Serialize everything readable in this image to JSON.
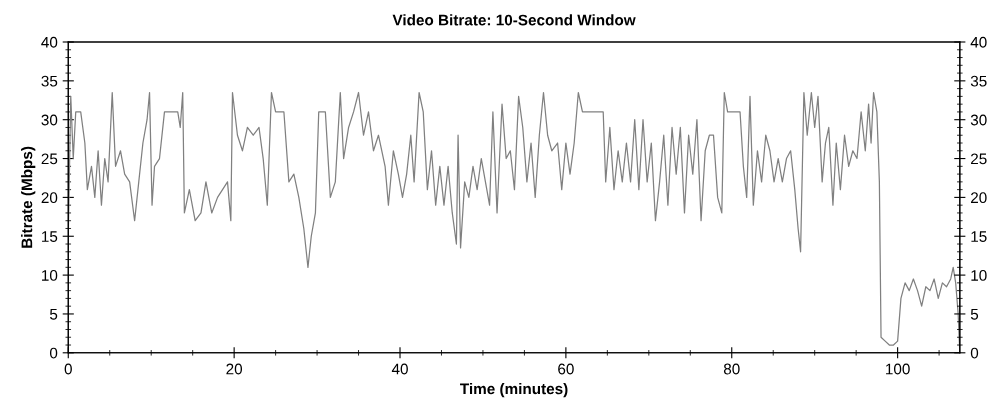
{
  "chart_data": {
    "type": "line",
    "title": "Video Bitrate: 10-Second Window",
    "xlabel": "Time (minutes)",
    "ylabel": "Bitrate (Mbps)",
    "xlim": [
      0,
      107.5
    ],
    "xticks": [
      0,
      20,
      40,
      60,
      80,
      100
    ],
    "ylim": [
      0,
      40
    ],
    "yticks": [
      0,
      5,
      10,
      15,
      20,
      25,
      30,
      35,
      40
    ],
    "y2lim": [
      0,
      40
    ],
    "y2ticks": [
      0,
      5,
      10,
      15,
      20,
      25,
      30,
      35,
      40
    ],
    "grid": false,
    "line_style": "solid",
    "marker": "none",
    "series": [
      {
        "color": "#808080",
        "x": [
          0,
          0.3,
          0.6,
          0.9,
          1.5,
          2.0,
          2.3,
          2.8,
          3.2,
          3.6,
          4.0,
          4.4,
          4.8,
          5.3,
          5.7,
          6.3,
          6.8,
          7.4,
          8.0,
          8.5,
          9.0,
          9.5,
          9.8,
          10.1,
          10.4,
          11.0,
          11.6,
          12.5,
          13.2,
          13.5,
          13.8,
          14.0,
          14.6,
          15.3,
          16.0,
          16.6,
          17.3,
          18.0,
          18.6,
          19.2,
          19.6,
          19.8,
          20.4,
          21.0,
          21.6,
          22.3,
          23.0,
          23.5,
          24.0,
          24.5,
          25.0,
          26.0,
          26.6,
          27.2,
          27.8,
          28.4,
          28.9,
          29.3,
          29.8,
          30.2,
          31.0,
          31.6,
          32.2,
          32.8,
          33.2,
          33.8,
          34.4,
          35.0,
          35.6,
          36.2,
          36.8,
          37.4,
          38.2,
          38.6,
          39.2,
          39.8,
          40.3,
          40.8,
          41.3,
          41.7,
          42.3,
          42.8,
          43.3,
          43.8,
          44.3,
          44.8,
          45.3,
          45.8,
          46.3,
          46.8,
          47.0,
          47.3,
          47.8,
          48.3,
          48.8,
          49.3,
          49.8,
          50.3,
          50.8,
          51.2,
          51.7,
          52.3,
          52.8,
          53.3,
          53.8,
          54.3,
          54.8,
          55.3,
          55.8,
          56.3,
          56.8,
          57.3,
          57.8,
          58.3,
          59.0,
          59.5,
          60.0,
          60.5,
          61.0,
          61.5,
          62.0,
          63.5,
          64.5,
          64.8,
          65.3,
          65.8,
          66.3,
          66.8,
          67.3,
          67.8,
          68.3,
          68.8,
          69.3,
          69.8,
          70.3,
          70.8,
          71.3,
          71.8,
          72.3,
          72.8,
          73.3,
          73.8,
          74.3,
          74.8,
          75.3,
          75.8,
          76.3,
          76.8,
          77.3,
          77.8,
          78.3,
          78.8,
          79.1,
          79.5,
          81.0,
          81.4,
          81.8,
          82.2,
          82.6,
          83.1,
          83.6,
          84.1,
          84.6,
          85.1,
          85.6,
          86.1,
          86.6,
          87.1,
          87.6,
          88.0,
          88.3,
          88.7,
          89.1,
          89.6,
          90.0,
          90.4,
          90.9,
          91.3,
          91.7,
          92.2,
          92.6,
          93.1,
          93.6,
          94.1,
          94.6,
          95.1,
          95.6,
          96.1,
          96.5,
          96.8,
          97.1,
          97.5,
          97.8,
          98.0,
          98.5,
          99.0,
          99.5,
          100.0,
          100.4,
          100.9,
          101.4,
          101.9,
          102.4,
          102.9,
          103.4,
          103.9,
          104.4,
          104.9,
          105.4,
          105.9,
          106.4,
          106.7,
          107.0,
          107.3,
          107.5
        ],
        "values": [
          15,
          33,
          25,
          31,
          31,
          27,
          21,
          24,
          20,
          26,
          19,
          25,
          22,
          33.5,
          24,
          26,
          23,
          22,
          17,
          22,
          27,
          30,
          33.5,
          19,
          24,
          25,
          31,
          31,
          31,
          29,
          33.5,
          18,
          21,
          17,
          18,
          22,
          18,
          20,
          21,
          22,
          17,
          33.5,
          28,
          26,
          29,
          28,
          29,
          25,
          19,
          33.5,
          31,
          31,
          22,
          23,
          20,
          16,
          11,
          15,
          18,
          31,
          31,
          20,
          22,
          33.5,
          25,
          29,
          31,
          33.5,
          28,
          31,
          26,
          28,
          24,
          19,
          26,
          23,
          20,
          23,
          28,
          22,
          33.5,
          31,
          21,
          26,
          19,
          24,
          19,
          24,
          18,
          14,
          28,
          13.5,
          22,
          20,
          24,
          21,
          25,
          22,
          19,
          31,
          18,
          32,
          25,
          26,
          21,
          33,
          29,
          22,
          27,
          20,
          28,
          33.5,
          28,
          26,
          27,
          21,
          27,
          23,
          27,
          33.5,
          31,
          31,
          31,
          22,
          29,
          21,
          26,
          22,
          27,
          22,
          30,
          21,
          30,
          22,
          27,
          17,
          22,
          28,
          19,
          29,
          23,
          29,
          18,
          28,
          23,
          30,
          17,
          26,
          28,
          28,
          20,
          18,
          33.5,
          31,
          31,
          24,
          20,
          33,
          19,
          26,
          22,
          28,
          26,
          22,
          25,
          22,
          25,
          26,
          21,
          16,
          13,
          33.5,
          28,
          33.5,
          29,
          33,
          22,
          27,
          29,
          19,
          27,
          21,
          28,
          24,
          26,
          25,
          31,
          26,
          32,
          27,
          33.5,
          31,
          22,
          2,
          1.5,
          1,
          1,
          1.5,
          7,
          9,
          8,
          9.5,
          8,
          6,
          8.5,
          8,
          9.5,
          7,
          9,
          8.5,
          9.5,
          11,
          9,
          5,
          0
        ]
      }
    ]
  }
}
